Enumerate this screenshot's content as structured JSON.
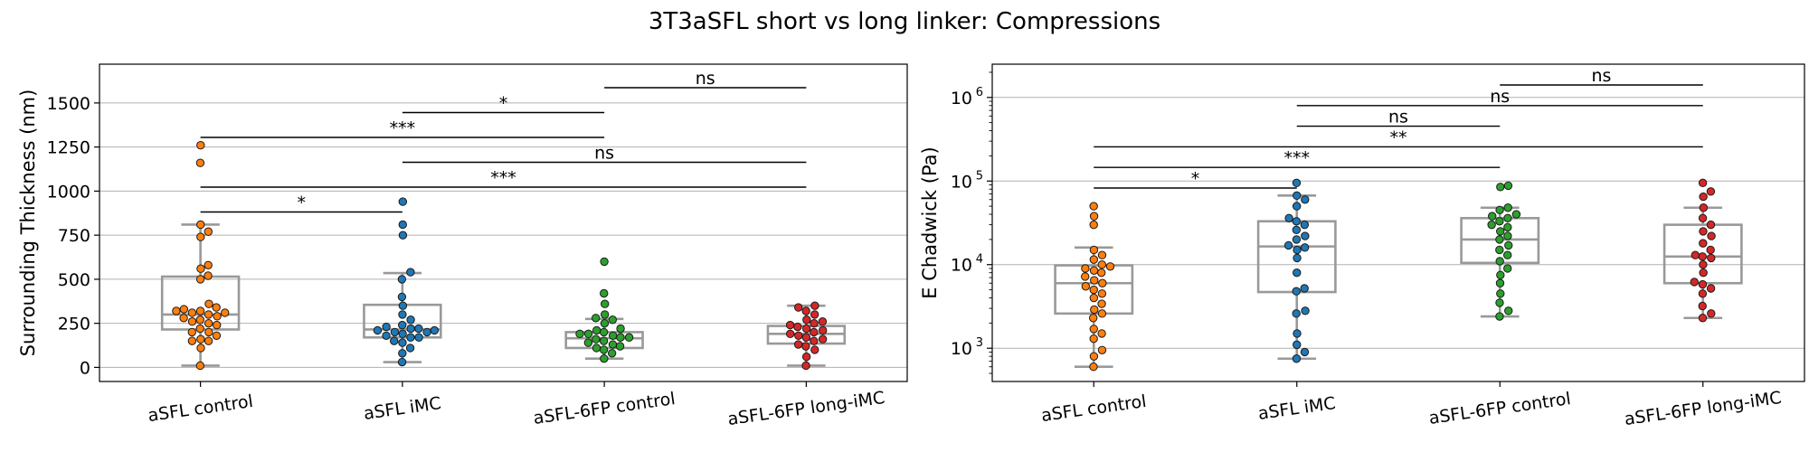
{
  "figure_title": "3T3aSFL short vs long linker: Compressions",
  "colors": {
    "groups": [
      "#ff7f0e",
      "#1f77b4",
      "#2ca02c",
      "#d62728"
    ],
    "box": "#999999",
    "grid": "#b0b0b0",
    "axis": "#000000"
  },
  "chart_data": [
    {
      "type": "box",
      "ylabel": "Surrounding Thickness (nm)",
      "yscale": "linear",
      "ylim": [
        -80,
        1720
      ],
      "yticks": [
        0,
        250,
        500,
        750,
        1000,
        1250,
        1500
      ],
      "ytick_labels": [
        "0",
        "250",
        "500",
        "750",
        "1000",
        "1250",
        "1500"
      ],
      "grid": "horizontal",
      "categories": [
        "aSFL control",
        "aSFL iMC",
        "aSFL-6FP control",
        "aSFL-6FP long-iMC"
      ],
      "boxes": [
        {
          "whislo": 10,
          "q1": 215,
          "med": 300,
          "q3": 515,
          "whishi": 810
        },
        {
          "whislo": 30,
          "q1": 170,
          "med": 215,
          "q3": 355,
          "whishi": 535
        },
        {
          "whislo": 50,
          "q1": 110,
          "med": 165,
          "q3": 200,
          "whishi": 275
        },
        {
          "whislo": 10,
          "q1": 135,
          "med": 190,
          "q3": 235,
          "whishi": 350
        }
      ],
      "points": [
        [
          10,
          110,
          150,
          150,
          160,
          180,
          200,
          200,
          220,
          240,
          250,
          260,
          270,
          280,
          290,
          300,
          310,
          310,
          320,
          320,
          330,
          340,
          360,
          500,
          520,
          560,
          580,
          740,
          770,
          810,
          1160,
          1260
        ],
        [
          30,
          80,
          110,
          140,
          150,
          170,
          170,
          180,
          190,
          200,
          200,
          210,
          210,
          220,
          220,
          230,
          240,
          270,
          300,
          350,
          400,
          500,
          540,
          750,
          810,
          940
        ],
        [
          50,
          80,
          100,
          110,
          120,
          130,
          140,
          150,
          160,
          170,
          170,
          180,
          190,
          190,
          200,
          210,
          220,
          250,
          270,
          280,
          300,
          360,
          420,
          600
        ],
        [
          10,
          60,
          100,
          120,
          130,
          150,
          160,
          170,
          180,
          190,
          200,
          210,
          220,
          230,
          240,
          250,
          260,
          270,
          300,
          320,
          340,
          350
        ]
      ],
      "significance": [
        {
          "from": 0,
          "to": 1,
          "label": "*"
        },
        {
          "from": 0,
          "to": 2,
          "label": "***"
        },
        {
          "from": 0,
          "to": 3,
          "label": "***"
        },
        {
          "from": 1,
          "to": 2,
          "label": "*"
        },
        {
          "from": 1,
          "to": 3,
          "label": "ns"
        },
        {
          "from": 2,
          "to": 3,
          "label": "ns"
        }
      ]
    },
    {
      "type": "box",
      "ylabel": "E Chadwick (Pa)",
      "yscale": "log",
      "ylim": [
        400,
        2500000
      ],
      "yticks": [
        1000,
        10000,
        100000,
        1000000
      ],
      "ytick_labels": [
        "10",
        "10",
        "10",
        "10"
      ],
      "ytick_exponents": [
        "3",
        "4",
        "5",
        "6"
      ],
      "grid": "horizontal",
      "categories": [
        "aSFL control",
        "aSFL iMC",
        "aSFL-6FP control",
        "aSFL-6FP long-iMC"
      ],
      "boxes": [
        {
          "whislo": 600,
          "q1": 2600,
          "med": 6000,
          "q3": 9800,
          "whishi": 16000
        },
        {
          "whislo": 750,
          "q1": 4700,
          "med": 16500,
          "q3": 33000,
          "whishi": 67000
        },
        {
          "whislo": 2400,
          "q1": 10500,
          "med": 20000,
          "q3": 36000,
          "whishi": 48000
        },
        {
          "whislo": 2300,
          "q1": 6000,
          "med": 12500,
          "q3": 30000,
          "whishi": 48000
        }
      ],
      "points": [
        [
          600,
          800,
          950,
          1300,
          1500,
          1700,
          2300,
          2600,
          2900,
          3400,
          4000,
          4500,
          5000,
          5500,
          6000,
          6500,
          7200,
          8000,
          8500,
          9000,
          9500,
          10000,
          11500,
          13000,
          15000,
          30000,
          38000,
          50000
        ],
        [
          750,
          900,
          1100,
          1500,
          2600,
          2800,
          4800,
          5200,
          8000,
          12000,
          15000,
          16000,
          17000,
          20000,
          22000,
          26000,
          30000,
          33000,
          36000,
          50000,
          60000,
          67000,
          95000
        ],
        [
          2400,
          2800,
          3500,
          4500,
          6000,
          7500,
          9000,
          11000,
          13000,
          15000,
          17000,
          20000,
          22000,
          25000,
          28000,
          30000,
          33000,
          36000,
          38000,
          40000,
          45000,
          48000,
          85000,
          88000
        ],
        [
          2300,
          2600,
          3200,
          4500,
          5200,
          5800,
          6200,
          8000,
          10000,
          12000,
          12500,
          13000,
          15000,
          18000,
          22000,
          25000,
          30000,
          36000,
          48000,
          65000,
          75000,
          95000
        ]
      ],
      "significance": [
        {
          "from": 0,
          "to": 1,
          "label": "*"
        },
        {
          "from": 0,
          "to": 2,
          "label": "***"
        },
        {
          "from": 0,
          "to": 3,
          "label": "**"
        },
        {
          "from": 1,
          "to": 2,
          "label": "ns"
        },
        {
          "from": 1,
          "to": 3,
          "label": "ns"
        },
        {
          "from": 2,
          "to": 3,
          "label": "ns"
        }
      ]
    }
  ]
}
